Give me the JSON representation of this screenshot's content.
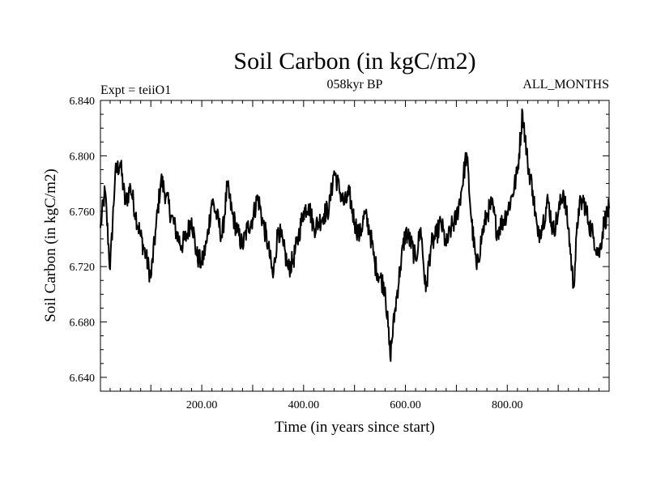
{
  "chart_data": {
    "type": "line",
    "title": "Soil Carbon (in kgC/m2)",
    "subtitle_left": "Expt = teiiO1",
    "subtitle_center": "058kyr BP",
    "subtitle_right": "ALL_MONTHS",
    "xlabel": "Time (in years since start)",
    "ylabel": "Soil Carbon (in kgC/m2)",
    "xlim": [
      1,
      1000
    ],
    "ylim": [
      6.63,
      6.84
    ],
    "xticks": [
      {
        "value": 200,
        "label": "200.00"
      },
      {
        "value": 400,
        "label": "400.00"
      },
      {
        "value": 600,
        "label": "600.00"
      },
      {
        "value": 800,
        "label": "800.00"
      }
    ],
    "yticks": [
      {
        "value": 6.64,
        "label": "6.640"
      },
      {
        "value": 6.68,
        "label": "6.680"
      },
      {
        "value": 6.72,
        "label": "6.720"
      },
      {
        "value": 6.76,
        "label": "6.760"
      },
      {
        "value": 6.8,
        "label": "6.800"
      },
      {
        "value": 6.84,
        "label": "6.840"
      }
    ],
    "grid": false,
    "color": "#000000",
    "series": [
      {
        "x": [
          1,
          10,
          20,
          30,
          40,
          50,
          60,
          70,
          80,
          90,
          100,
          110,
          120,
          130,
          140,
          150,
          160,
          170,
          180,
          190,
          200,
          210,
          220,
          230,
          240,
          250,
          260,
          270,
          280,
          290,
          300,
          310,
          320,
          330,
          340,
          350,
          360,
          370,
          380,
          390,
          400,
          410,
          420,
          430,
          440,
          450,
          460,
          470,
          480,
          490,
          500,
          510,
          520,
          530,
          540,
          550,
          560,
          570,
          580,
          590,
          600,
          610,
          620,
          630,
          640,
          650,
          660,
          670,
          680,
          690,
          700,
          710,
          720,
          730,
          740,
          750,
          760,
          770,
          780,
          790,
          800,
          810,
          820,
          830,
          840,
          850,
          860,
          870,
          880,
          890,
          900,
          910,
          920,
          930,
          940,
          950,
          960,
          970,
          980,
          990,
          1000
        ],
        "values": [
          6.748,
          6.775,
          6.718,
          6.787,
          6.795,
          6.765,
          6.778,
          6.758,
          6.742,
          6.728,
          6.712,
          6.748,
          6.783,
          6.771,
          6.757,
          6.745,
          6.735,
          6.742,
          6.755,
          6.728,
          6.722,
          6.738,
          6.768,
          6.756,
          6.741,
          6.778,
          6.758,
          6.745,
          6.735,
          6.748,
          6.755,
          6.771,
          6.752,
          6.736,
          6.712,
          6.748,
          6.735,
          6.718,
          6.725,
          6.742,
          6.76,
          6.765,
          6.748,
          6.752,
          6.758,
          6.762,
          6.789,
          6.776,
          6.765,
          6.772,
          6.752,
          6.742,
          6.758,
          6.746,
          6.722,
          6.712,
          6.705,
          6.655,
          6.69,
          6.72,
          6.745,
          6.738,
          6.725,
          6.748,
          6.702,
          6.735,
          6.742,
          6.752,
          6.735,
          6.748,
          6.755,
          6.775,
          6.802,
          6.752,
          6.718,
          6.742,
          6.758,
          6.765,
          6.745,
          6.752,
          6.76,
          6.772,
          6.788,
          6.832,
          6.795,
          6.775,
          6.742,
          6.752,
          6.768,
          6.745,
          6.758,
          6.775,
          6.748,
          6.705,
          6.762,
          6.768,
          6.752,
          6.741,
          6.728,
          6.752,
          6.762
        ]
      }
    ]
  }
}
